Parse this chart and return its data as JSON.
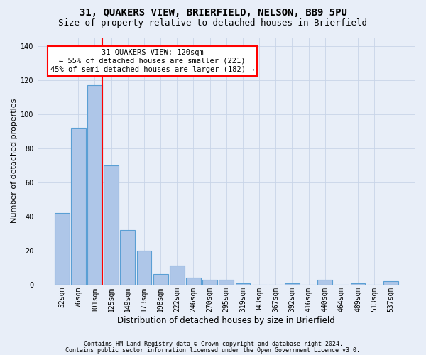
{
  "title": "31, QUAKERS VIEW, BRIERFIELD, NELSON, BB9 5PU",
  "subtitle": "Size of property relative to detached houses in Brierfield",
  "xlabel": "Distribution of detached houses by size in Brierfield",
  "ylabel": "Number of detached properties",
  "footnote1": "Contains HM Land Registry data © Crown copyright and database right 2024.",
  "footnote2": "Contains public sector information licensed under the Open Government Licence v3.0.",
  "bin_labels": [
    "52sqm",
    "76sqm",
    "101sqm",
    "125sqm",
    "149sqm",
    "173sqm",
    "198sqm",
    "222sqm",
    "246sqm",
    "270sqm",
    "295sqm",
    "319sqm",
    "343sqm",
    "367sqm",
    "392sqm",
    "416sqm",
    "440sqm",
    "464sqm",
    "489sqm",
    "513sqm",
    "537sqm"
  ],
  "bar_values": [
    42,
    92,
    117,
    70,
    32,
    20,
    6,
    11,
    4,
    3,
    3,
    1,
    0,
    0,
    1,
    0,
    3,
    0,
    1,
    0,
    2
  ],
  "bar_color": "#aec6e8",
  "bar_edge_color": "#5a9fd4",
  "subject_line_color": "red",
  "annotation_text": "31 QUAKERS VIEW: 120sqm\n← 55% of detached houses are smaller (221)\n45% of semi-detached houses are larger (182) →",
  "annotation_box_facecolor": "white",
  "annotation_box_edgecolor": "red",
  "ylim": [
    0,
    145
  ],
  "yticks": [
    0,
    20,
    40,
    60,
    80,
    100,
    120,
    140
  ],
  "background_color": "#e8eef8",
  "grid_color": "#c8d4e8",
  "title_fontsize": 10,
  "subtitle_fontsize": 9,
  "xlabel_fontsize": 8.5,
  "ylabel_fontsize": 8,
  "tick_fontsize": 7,
  "annotation_fontsize": 7.5,
  "footnote_fontsize": 6
}
